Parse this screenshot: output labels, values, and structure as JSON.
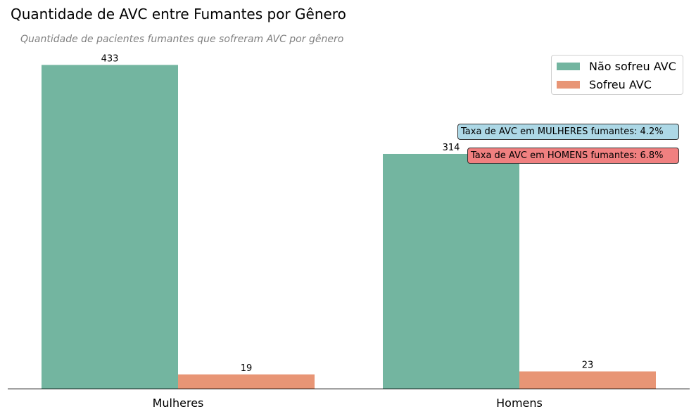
{
  "chart_data": {
    "type": "bar",
    "title": "Quantidade de AVC entre Fumantes por Gênero",
    "subtitle": "Quantidade de pacientes fumantes que sofreram AVC por gênero",
    "categories": [
      "Mulheres",
      "Homens"
    ],
    "series": [
      {
        "name": "Não sofreu AVC",
        "values": [
          433,
          314
        ],
        "color": "#73b5a0"
      },
      {
        "name": "Sofreu AVC",
        "values": [
          19,
          23
        ],
        "color": "#e89575"
      }
    ],
    "xlabel": "",
    "ylabel": "",
    "ylim": [
      0,
      455
    ],
    "grid": false,
    "legend_position": "top-right",
    "annotations": [
      {
        "text": "Taxa de AVC em MULHERES fumantes: 4.2%",
        "color": "#add8e6"
      },
      {
        "text": "Taxa de AVC em HOMENS fumantes: 6.8%",
        "color": "#f08080"
      }
    ]
  }
}
